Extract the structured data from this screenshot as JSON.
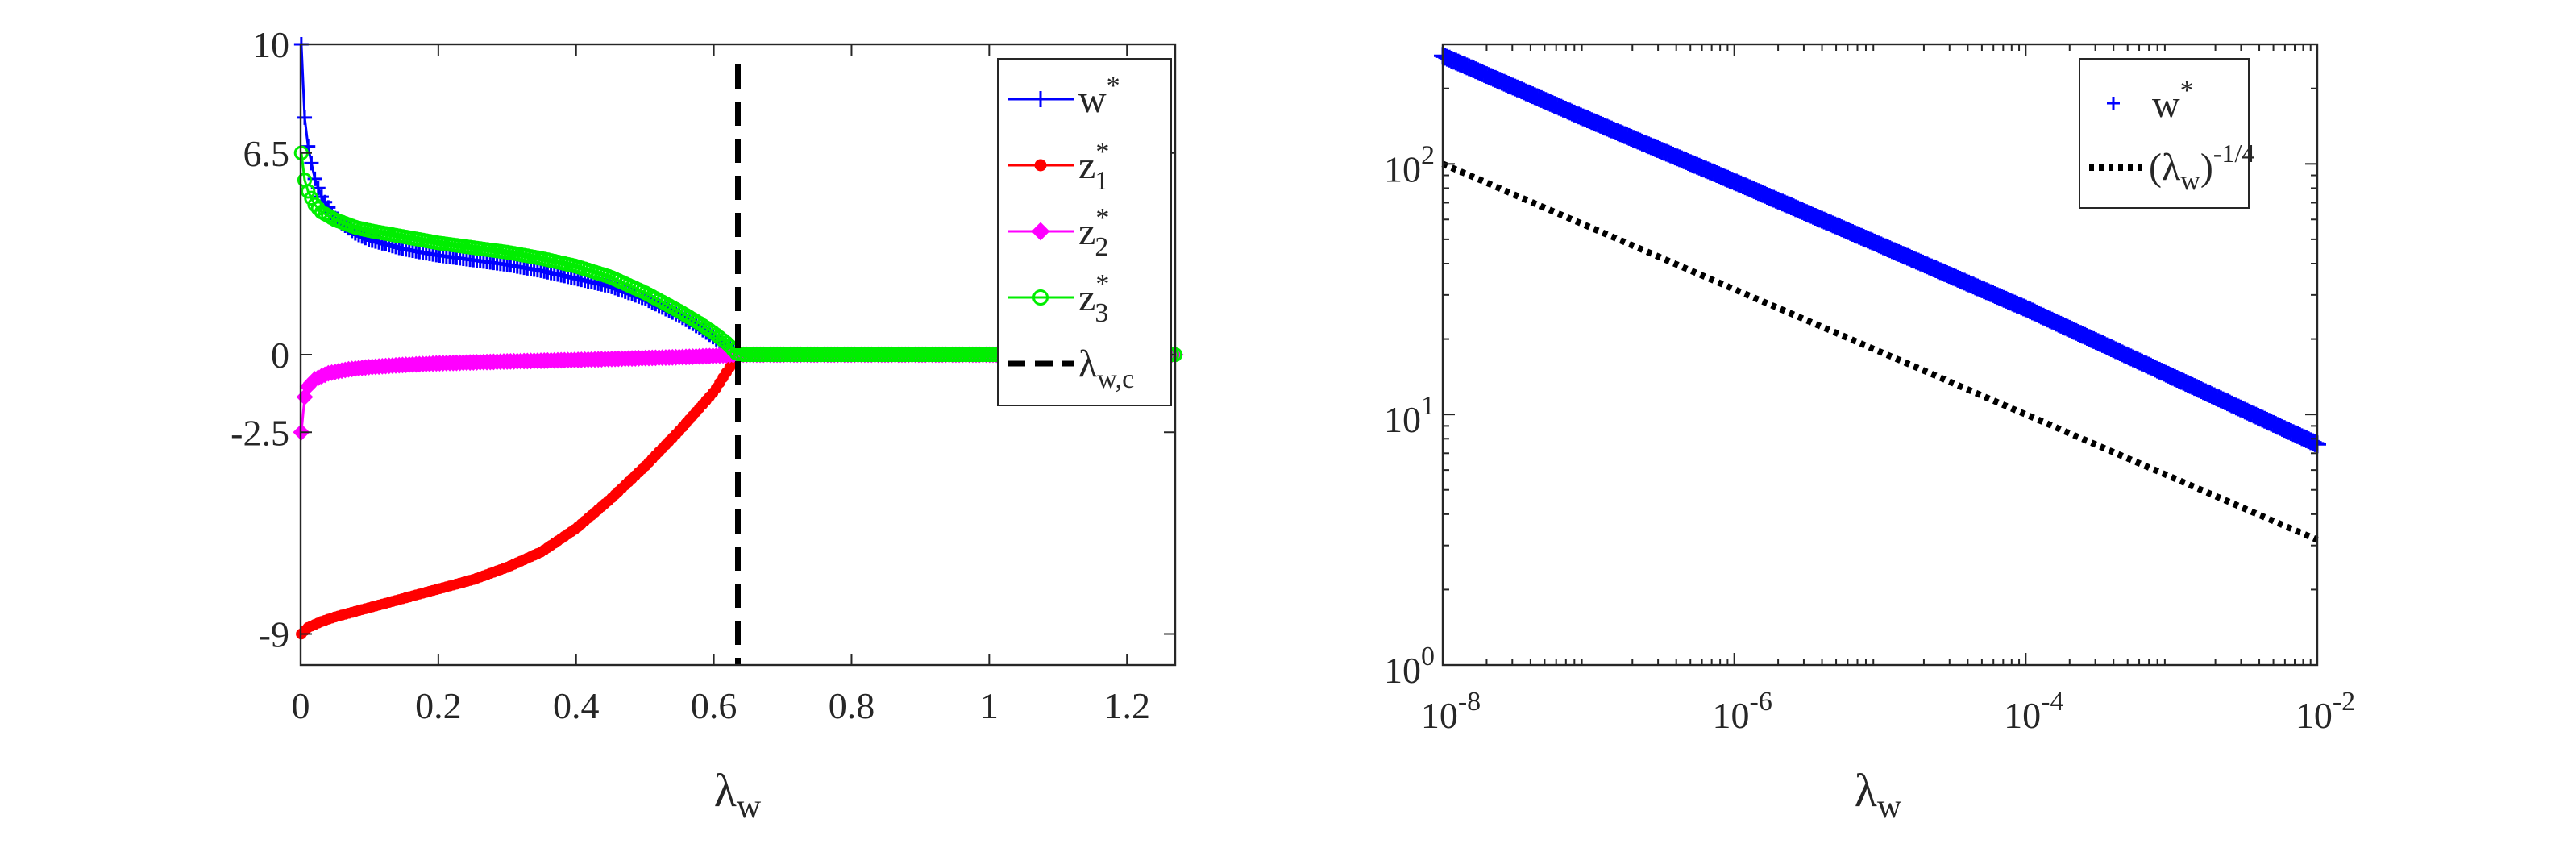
{
  "chart_data": [
    {
      "type": "line",
      "xlabel": "λ_w",
      "ylabel": "",
      "xlim": [
        0,
        1.27
      ],
      "ylim": [
        -10,
        10
      ],
      "xticks": [
        0,
        0.2,
        0.4,
        0.6,
        0.8,
        1,
        1.2
      ],
      "xtick_labels": [
        "0",
        "0.2",
        "0.4",
        "0.6",
        "0.8",
        "1",
        "1.2"
      ],
      "yticks": [
        10,
        6.5,
        0,
        -2.5,
        -9
      ],
      "ytick_labels": [
        "10",
        "6.5",
        "0",
        "-2.5",
        "-9"
      ],
      "grid": false,
      "legend": "top-right",
      "critical_line": {
        "x": 0.635,
        "name": "λ_w,c",
        "style": "dashed",
        "color": "#000000"
      },
      "series": [
        {
          "name": "w*",
          "marker": "plus",
          "color": "#0000ff",
          "x": [
            0.001,
            0.003,
            0.006,
            0.01,
            0.02,
            0.03,
            0.05,
            0.08,
            0.1,
            0.15,
            0.2,
            0.25,
            0.3,
            0.35,
            0.4,
            0.45,
            0.5,
            0.55,
            0.58,
            0.6,
            0.62,
            0.635,
            0.7,
            0.8,
            0.9,
            1.0,
            1.1,
            1.2,
            1.27
          ],
          "y": [
            10,
            8.8,
            7.6,
            6.8,
            5.7,
            5.1,
            4.4,
            3.9,
            3.7,
            3.4,
            3.2,
            3.05,
            2.9,
            2.7,
            2.45,
            2.2,
            1.8,
            1.25,
            0.85,
            0.55,
            0.25,
            0,
            0,
            0,
            0,
            0,
            0,
            0,
            0
          ]
        },
        {
          "name": "z1*",
          "marker": "dot",
          "color": "#ff0000",
          "x": [
            0.001,
            0.01,
            0.03,
            0.05,
            0.1,
            0.15,
            0.2,
            0.25,
            0.3,
            0.35,
            0.4,
            0.45,
            0.5,
            0.55,
            0.6,
            0.635,
            0.7,
            0.8,
            0.9,
            1.0,
            1.1,
            1.2,
            1.27
          ],
          "y": [
            -9,
            -8.8,
            -8.6,
            -8.45,
            -8.15,
            -7.85,
            -7.55,
            -7.25,
            -6.85,
            -6.35,
            -5.6,
            -4.65,
            -3.6,
            -2.45,
            -1.2,
            0,
            0,
            0,
            0,
            0,
            0,
            0,
            0
          ]
        },
        {
          "name": "z2*",
          "marker": "diamond",
          "color": "#ff00ff",
          "x": [
            0.001,
            0.003,
            0.006,
            0.01,
            0.02,
            0.04,
            0.07,
            0.1,
            0.15,
            0.2,
            0.3,
            0.4,
            0.5,
            0.55,
            0.6,
            0.635,
            0.7,
            0.8,
            0.9,
            1.0,
            1.1,
            1.2,
            1.27
          ],
          "y": [
            -2.5,
            -1.75,
            -1.35,
            -1.05,
            -0.8,
            -0.6,
            -0.47,
            -0.4,
            -0.33,
            -0.28,
            -0.22,
            -0.17,
            -0.11,
            -0.08,
            -0.04,
            0,
            0,
            0,
            0,
            0,
            0,
            0,
            0
          ]
        },
        {
          "name": "z3*",
          "marker": "circle",
          "color": "#00ee00",
          "x": [
            0.001,
            0.005,
            0.01,
            0.02,
            0.03,
            0.05,
            0.08,
            0.1,
            0.15,
            0.2,
            0.25,
            0.3,
            0.35,
            0.4,
            0.45,
            0.5,
            0.55,
            0.58,
            0.6,
            0.62,
            0.635,
            0.7,
            0.8,
            0.9,
            1.0,
            1.1,
            1.2,
            1.27
          ],
          "y": [
            6.5,
            5.7,
            5.3,
            4.85,
            4.6,
            4.35,
            4.1,
            4.0,
            3.8,
            3.6,
            3.45,
            3.3,
            3.1,
            2.85,
            2.5,
            2.0,
            1.4,
            1.0,
            0.7,
            0.35,
            0,
            0,
            0,
            0,
            0,
            0,
            0,
            0
          ]
        }
      ]
    },
    {
      "type": "line",
      "xlabel": "λ_w",
      "ylabel": "",
      "xscale": "log",
      "yscale": "log",
      "xlim": [
        1e-08,
        0.01
      ],
      "ylim": [
        1,
        300
      ],
      "xticks": [
        1e-08,
        1e-06,
        0.0001,
        0.01
      ],
      "xtick_exponents": [
        "-8",
        "-6",
        "-4",
        "-2"
      ],
      "yticks": [
        1,
        10,
        100
      ],
      "ytick_exponents": [
        "0",
        "1",
        "2"
      ],
      "tick_base": "10",
      "grid": false,
      "legend": "top-right",
      "series": [
        {
          "name": "w*",
          "marker": "plus",
          "color": "#0000ff",
          "x": [
            1e-08,
            1e-07,
            1e-06,
            1e-05,
            0.0001,
            0.001,
            0.01
          ],
          "y": [
            270,
            150,
            85,
            47.5,
            26.5,
            14.2,
            7.6
          ]
        },
        {
          "name": "(λ_w)^-1/4",
          "style": "dotted",
          "color": "#000000",
          "x": [
            1e-08,
            1e-07,
            1e-06,
            1e-05,
            0.0001,
            0.001,
            0.01
          ],
          "y": [
            100,
            56.2,
            31.6,
            17.8,
            10,
            5.62,
            3.16
          ]
        }
      ]
    }
  ]
}
